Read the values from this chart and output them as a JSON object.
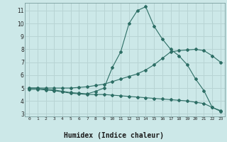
{
  "xlabel": "Humidex (Indice chaleur)",
  "bg_color": "#cce8e8",
  "grid_color": "#b8d4d4",
  "line_color": "#2d6e65",
  "bottom_bar_color": "#a0b8b8",
  "xlim": [
    -0.5,
    23.5
  ],
  "ylim": [
    2.8,
    11.6
  ],
  "yticks": [
    3,
    4,
    5,
    6,
    7,
    8,
    9,
    10,
    11
  ],
  "xticks": [
    0,
    1,
    2,
    3,
    4,
    5,
    6,
    7,
    8,
    9,
    10,
    11,
    12,
    13,
    14,
    15,
    16,
    17,
    18,
    19,
    20,
    21,
    22,
    23
  ],
  "line1_x": [
    0,
    1,
    2,
    3,
    4,
    5,
    6,
    7,
    8,
    9,
    10,
    11,
    12,
    13,
    14,
    15,
    16,
    17,
    18,
    19,
    20,
    21,
    22,
    23
  ],
  "line1_y": [
    5.0,
    5.0,
    5.0,
    5.0,
    5.0,
    5.0,
    5.05,
    5.1,
    5.2,
    5.3,
    5.5,
    5.7,
    5.9,
    6.1,
    6.4,
    6.8,
    7.3,
    7.8,
    7.9,
    7.95,
    8.0,
    7.9,
    7.5,
    7.0
  ],
  "line2_x": [
    0,
    1,
    2,
    3,
    4,
    5,
    6,
    7,
    8,
    9,
    10,
    11,
    12,
    13,
    14,
    15,
    16,
    17,
    18,
    19,
    20,
    21,
    22,
    23
  ],
  "line2_y": [
    5.0,
    5.0,
    4.9,
    4.85,
    4.75,
    4.65,
    4.6,
    4.55,
    4.75,
    5.0,
    6.6,
    7.8,
    10.0,
    11.0,
    11.3,
    9.8,
    8.8,
    8.0,
    7.5,
    6.8,
    5.7,
    4.8,
    3.5,
    3.2
  ],
  "line3_x": [
    0,
    1,
    2,
    3,
    4,
    5,
    6,
    7,
    8,
    9,
    10,
    11,
    12,
    13,
    14,
    15,
    16,
    17,
    18,
    19,
    20,
    21,
    22,
    23
  ],
  "line3_y": [
    4.9,
    4.9,
    4.85,
    4.8,
    4.7,
    4.6,
    4.55,
    4.5,
    4.5,
    4.5,
    4.45,
    4.4,
    4.35,
    4.3,
    4.25,
    4.2,
    4.15,
    4.1,
    4.05,
    4.0,
    3.9,
    3.8,
    3.5,
    3.25
  ]
}
